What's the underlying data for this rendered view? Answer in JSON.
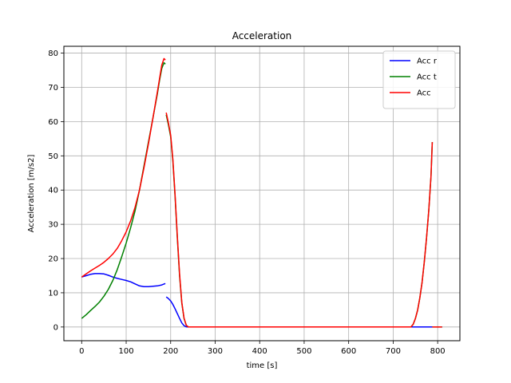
{
  "chart_data": {
    "type": "line",
    "title": "Acceleration",
    "xlabel": "time [s]",
    "ylabel": "Acceleration [m/s2]",
    "xlim": [
      -40,
      850
    ],
    "ylim": [
      -4,
      82
    ],
    "xticks": [
      0,
      100,
      200,
      300,
      400,
      500,
      600,
      700,
      800
    ],
    "yticks": [
      0,
      10,
      20,
      30,
      40,
      50,
      60,
      70,
      80
    ],
    "grid": true,
    "legend_position": "top-right",
    "series": [
      {
        "name": "Acc r",
        "color": "#0000ff",
        "segments": [
          [
            [
              0,
              14.6
            ],
            [
              10,
              15.0
            ],
            [
              20,
              15.4
            ],
            [
              30,
              15.6
            ],
            [
              40,
              15.6
            ],
            [
              50,
              15.5
            ],
            [
              60,
              15.1
            ],
            [
              70,
              14.6
            ],
            [
              80,
              14.2
            ],
            [
              90,
              13.9
            ],
            [
              100,
              13.6
            ],
            [
              110,
              13.2
            ],
            [
              120,
              12.6
            ],
            [
              130,
              12.0
            ],
            [
              140,
              11.8
            ],
            [
              150,
              11.8
            ],
            [
              160,
              11.9
            ],
            [
              170,
              12.0
            ],
            [
              180,
              12.3
            ],
            [
              188,
              12.7
            ]
          ],
          [
            [
              190,
              8.8
            ],
            [
              195,
              8.3
            ],
            [
              200,
              7.6
            ],
            [
              205,
              6.6
            ],
            [
              210,
              5.3
            ],
            [
              215,
              3.9
            ],
            [
              220,
              2.5
            ],
            [
              225,
              1.2
            ],
            [
              230,
              0.4
            ],
            [
              235,
              0.05
            ],
            [
              240,
              0
            ],
            [
              300,
              0
            ],
            [
              400,
              0
            ],
            [
              500,
              0
            ],
            [
              600,
              0
            ],
            [
              700,
              0
            ],
            [
              740,
              0
            ],
            [
              760,
              0
            ],
            [
              780,
              0
            ],
            [
              790,
              0
            ],
            [
              800,
              0
            ],
            [
              810,
              0
            ]
          ]
        ]
      },
      {
        "name": "Acc t",
        "color": "#008000",
        "segments": [
          [
            [
              0,
              2.5
            ],
            [
              10,
              3.6
            ],
            [
              20,
              4.8
            ],
            [
              30,
              6.0
            ],
            [
              40,
              7.3
            ],
            [
              50,
              9.0
            ],
            [
              60,
              11.0
            ],
            [
              70,
              13.6
            ],
            [
              80,
              16.8
            ],
            [
              90,
              20.5
            ],
            [
              100,
              24.5
            ],
            [
              110,
              29.0
            ],
            [
              120,
              34.0
            ],
            [
              130,
              40.0
            ],
            [
              140,
              47.0
            ],
            [
              150,
              54.0
            ],
            [
              160,
              61.0
            ],
            [
              170,
              68.0
            ],
            [
              175,
              72.0
            ],
            [
              180,
              75.5
            ],
            [
              185,
              77.2
            ],
            [
              188,
              76.8
            ]
          ],
          [
            [
              190,
              62.0
            ],
            [
              195,
              59.0
            ],
            [
              200,
              55.5
            ],
            [
              205,
              48.5
            ],
            [
              210,
              38.0
            ],
            [
              215,
              26.0
            ],
            [
              220,
              15.0
            ],
            [
              225,
              7.0
            ],
            [
              230,
              2.5
            ],
            [
              235,
              0.5
            ],
            [
              240,
              0
            ],
            [
              300,
              0
            ],
            [
              400,
              0
            ],
            [
              500,
              0
            ],
            [
              600,
              0
            ],
            [
              700,
              0
            ],
            [
              740,
              0
            ],
            [
              745,
              0.8
            ],
            [
              750,
              2.5
            ],
            [
              755,
              5.0
            ],
            [
              760,
              8.5
            ],
            [
              765,
              13.0
            ],
            [
              770,
              19.0
            ],
            [
              775,
              26.0
            ],
            [
              780,
              34.0
            ],
            [
              785,
              44.0
            ],
            [
              788,
              54.0
            ]
          ],
          [
            [
              788,
              0
            ],
            [
              800,
              0
            ],
            [
              810,
              0
            ]
          ]
        ]
      },
      {
        "name": "Acc",
        "color": "#ff0000",
        "segments": [
          [
            [
              0,
              14.6
            ],
            [
              10,
              15.5
            ],
            [
              20,
              16.4
            ],
            [
              30,
              17.2
            ],
            [
              40,
              18.0
            ],
            [
              50,
              18.9
            ],
            [
              60,
              20.0
            ],
            [
              70,
              21.3
            ],
            [
              80,
              23.0
            ],
            [
              90,
              25.2
            ],
            [
              100,
              27.8
            ],
            [
              110,
              31.0
            ],
            [
              120,
              35.0
            ],
            [
              130,
              40.0
            ],
            [
              140,
              46.5
            ],
            [
              150,
              53.5
            ],
            [
              160,
              61.0
            ],
            [
              170,
              68.5
            ],
            [
              175,
              72.5
            ],
            [
              180,
              76.5
            ],
            [
              185,
              78.4
            ],
            [
              188,
              78.0
            ]
          ],
          [
            [
              190,
              62.6
            ],
            [
              195,
              59.5
            ],
            [
              200,
              56.0
            ],
            [
              205,
              49.0
            ],
            [
              210,
              38.5
            ],
            [
              215,
              26.5
            ],
            [
              220,
              15.5
            ],
            [
              225,
              7.2
            ],
            [
              230,
              2.6
            ],
            [
              235,
              0.5
            ],
            [
              240,
              0
            ],
            [
              300,
              0
            ],
            [
              400,
              0
            ],
            [
              500,
              0
            ],
            [
              600,
              0
            ],
            [
              700,
              0
            ],
            [
              740,
              0
            ],
            [
              745,
              0.8
            ],
            [
              750,
              2.5
            ],
            [
              755,
              5.0
            ],
            [
              760,
              8.5
            ],
            [
              765,
              13.0
            ],
            [
              770,
              19.0
            ],
            [
              775,
              26.0
            ],
            [
              780,
              34.0
            ],
            [
              785,
              44.0
            ],
            [
              788,
              54.0
            ]
          ],
          [
            [
              788,
              0
            ],
            [
              800,
              0
            ],
            [
              810,
              0
            ]
          ]
        ]
      }
    ]
  }
}
